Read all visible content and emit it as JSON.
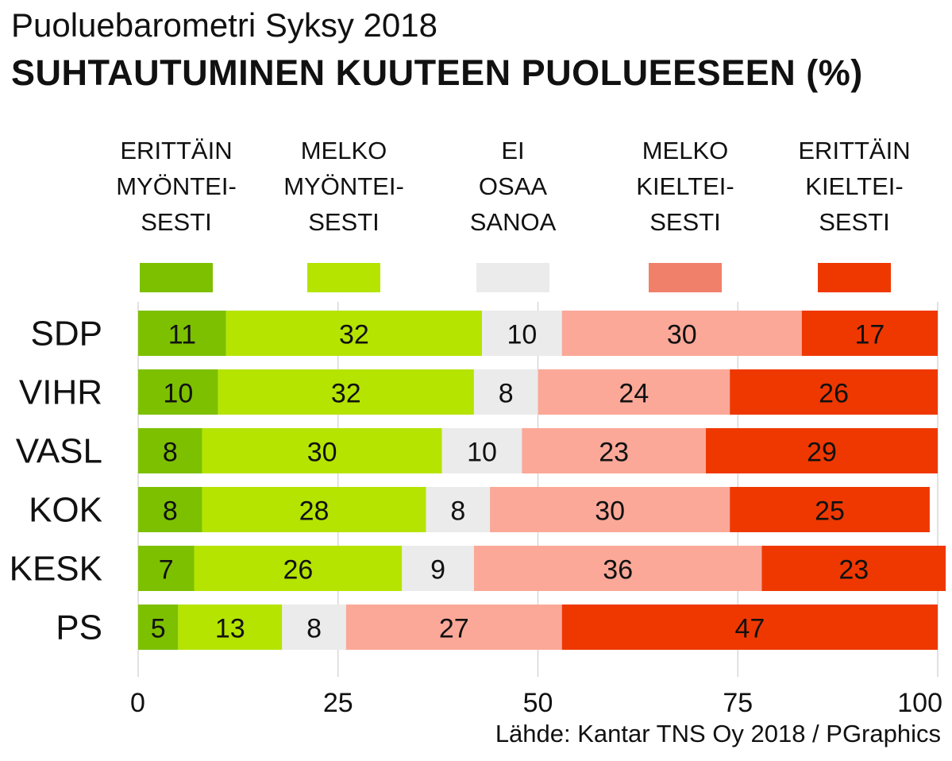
{
  "chart_data": {
    "type": "bar",
    "orientation": "horizontal",
    "stacked": true,
    "subtitle": "Puoluebarometri Syksy 2018",
    "title": "SUHTAUTUMINEN KUUTEEN PUOLUEESEEN (%)",
    "source": "Lähde: Kantar TNS Oy 2018 / PGraphics",
    "categories": [
      "SDP",
      "VIHR",
      "VASL",
      "KOK",
      "KESK",
      "PS"
    ],
    "series": [
      {
        "name": "ERITTÄIN MYÖNTEISESTI",
        "label_lines": [
          "ERITTÄIN",
          "MYÖNTEI-",
          "SESTI"
        ],
        "color": "#7dc000",
        "values": [
          11,
          10,
          8,
          8,
          7,
          5
        ]
      },
      {
        "name": "MELKO MYÖNTEISESTI",
        "label_lines": [
          "MELKO",
          "MYÖNTEI-",
          "SESTI"
        ],
        "color": "#b5e400",
        "values": [
          32,
          32,
          30,
          28,
          26,
          13
        ]
      },
      {
        "name": "EI OSAA SANOA",
        "label_lines": [
          "EI",
          "OSAA",
          "SANOA"
        ],
        "color": "#ebebeb",
        "values": [
          10,
          8,
          10,
          8,
          9,
          8
        ]
      },
      {
        "name": "MELKO KIELTEISESTI",
        "label_lines": [
          "MELKO",
          "KIELTEI-",
          "SESTI"
        ],
        "color": "#fba898",
        "values": [
          30,
          24,
          23,
          30,
          36,
          27
        ]
      },
      {
        "name": "ERITTÄIN KIELTEISESTI",
        "label_lines": [
          "ERITTÄIN",
          "KIELTEI-",
          "SESTI"
        ],
        "color": "#ef3800",
        "values": [
          17,
          26,
          29,
          25,
          23,
          47
        ]
      }
    ],
    "legend_swatch_colors": [
      "#7dc000",
      "#b5e400",
      "#ebebeb",
      "#f0806a",
      "#ef3800"
    ],
    "xlim": [
      0,
      100
    ],
    "xticks": [
      0,
      25,
      50,
      75,
      100
    ],
    "grid": true,
    "legend_position": "top"
  }
}
